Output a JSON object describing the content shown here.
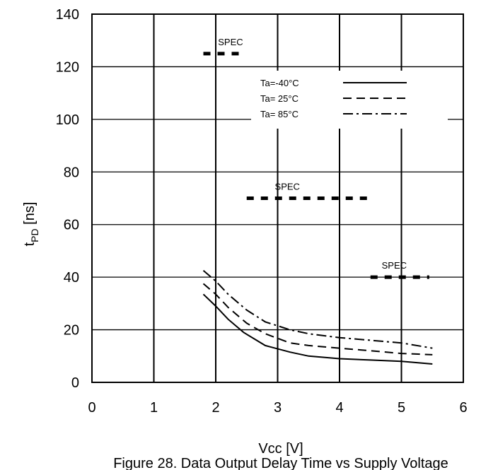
{
  "chart_data": {
    "type": "line",
    "title": "",
    "caption": "Figure 28. Data Output Delay Time vs Supply Voltage",
    "xlabel": "Vcc [V]",
    "ylabel": {
      "main": "t",
      "sub": "PD",
      "unit": " [ns]"
    },
    "xlim": [
      0,
      6
    ],
    "ylim": [
      0,
      140
    ],
    "xticks": [
      "0",
      "1",
      "2",
      "3",
      "4",
      "5",
      "6"
    ],
    "yticks": [
      "0",
      "20",
      "40",
      "60",
      "80",
      "100",
      "120",
      "140"
    ],
    "grid": {
      "vertical": true,
      "horizontal": true
    },
    "legend": {
      "placement": "top-right",
      "entries": [
        {
          "label": "Ta=-40°C",
          "style": "solid"
        },
        {
          "label": "Ta= 25°C",
          "style": "dashed"
        },
        {
          "label": "Ta= 85°C",
          "style": "dashdot"
        }
      ]
    },
    "series": [
      {
        "name": "Ta=-40°C",
        "style": "solid",
        "points": [
          [
            1.8,
            33.5
          ],
          [
            2.0,
            29
          ],
          [
            2.2,
            24
          ],
          [
            2.45,
            19
          ],
          [
            2.8,
            14
          ],
          [
            3.2,
            11.5
          ],
          [
            3.5,
            10
          ],
          [
            4.0,
            9
          ],
          [
            4.5,
            8.5
          ],
          [
            5.0,
            8
          ],
          [
            5.5,
            7
          ]
        ]
      },
      {
        "name": "Ta= 25°C",
        "style": "dashed",
        "points": [
          [
            1.8,
            37.5
          ],
          [
            2.0,
            33.5
          ],
          [
            2.2,
            28.5
          ],
          [
            2.5,
            22.5
          ],
          [
            2.8,
            18.5
          ],
          [
            3.2,
            15
          ],
          [
            3.5,
            14
          ],
          [
            4.0,
            13
          ],
          [
            4.5,
            12
          ],
          [
            5.0,
            11
          ],
          [
            5.5,
            10.5
          ]
        ]
      },
      {
        "name": "Ta= 85°C",
        "style": "dashdot",
        "points": [
          [
            1.8,
            42.5
          ],
          [
            2.0,
            38.5
          ],
          [
            2.2,
            33.5
          ],
          [
            2.5,
            27.5
          ],
          [
            2.8,
            23
          ],
          [
            3.2,
            20
          ],
          [
            3.5,
            18.5
          ],
          [
            4.0,
            17
          ],
          [
            4.5,
            16
          ],
          [
            5.0,
            15
          ],
          [
            5.5,
            13
          ]
        ]
      }
    ],
    "spec_lines": [
      {
        "label": "SPEC",
        "x": [
          1.8,
          2.45
        ],
        "y": 125
      },
      {
        "label": "SPEC",
        "x": [
          2.5,
          4.5
        ],
        "y": 70
      },
      {
        "label": "SPEC",
        "x": [
          4.5,
          5.45
        ],
        "y": 40
      }
    ]
  }
}
